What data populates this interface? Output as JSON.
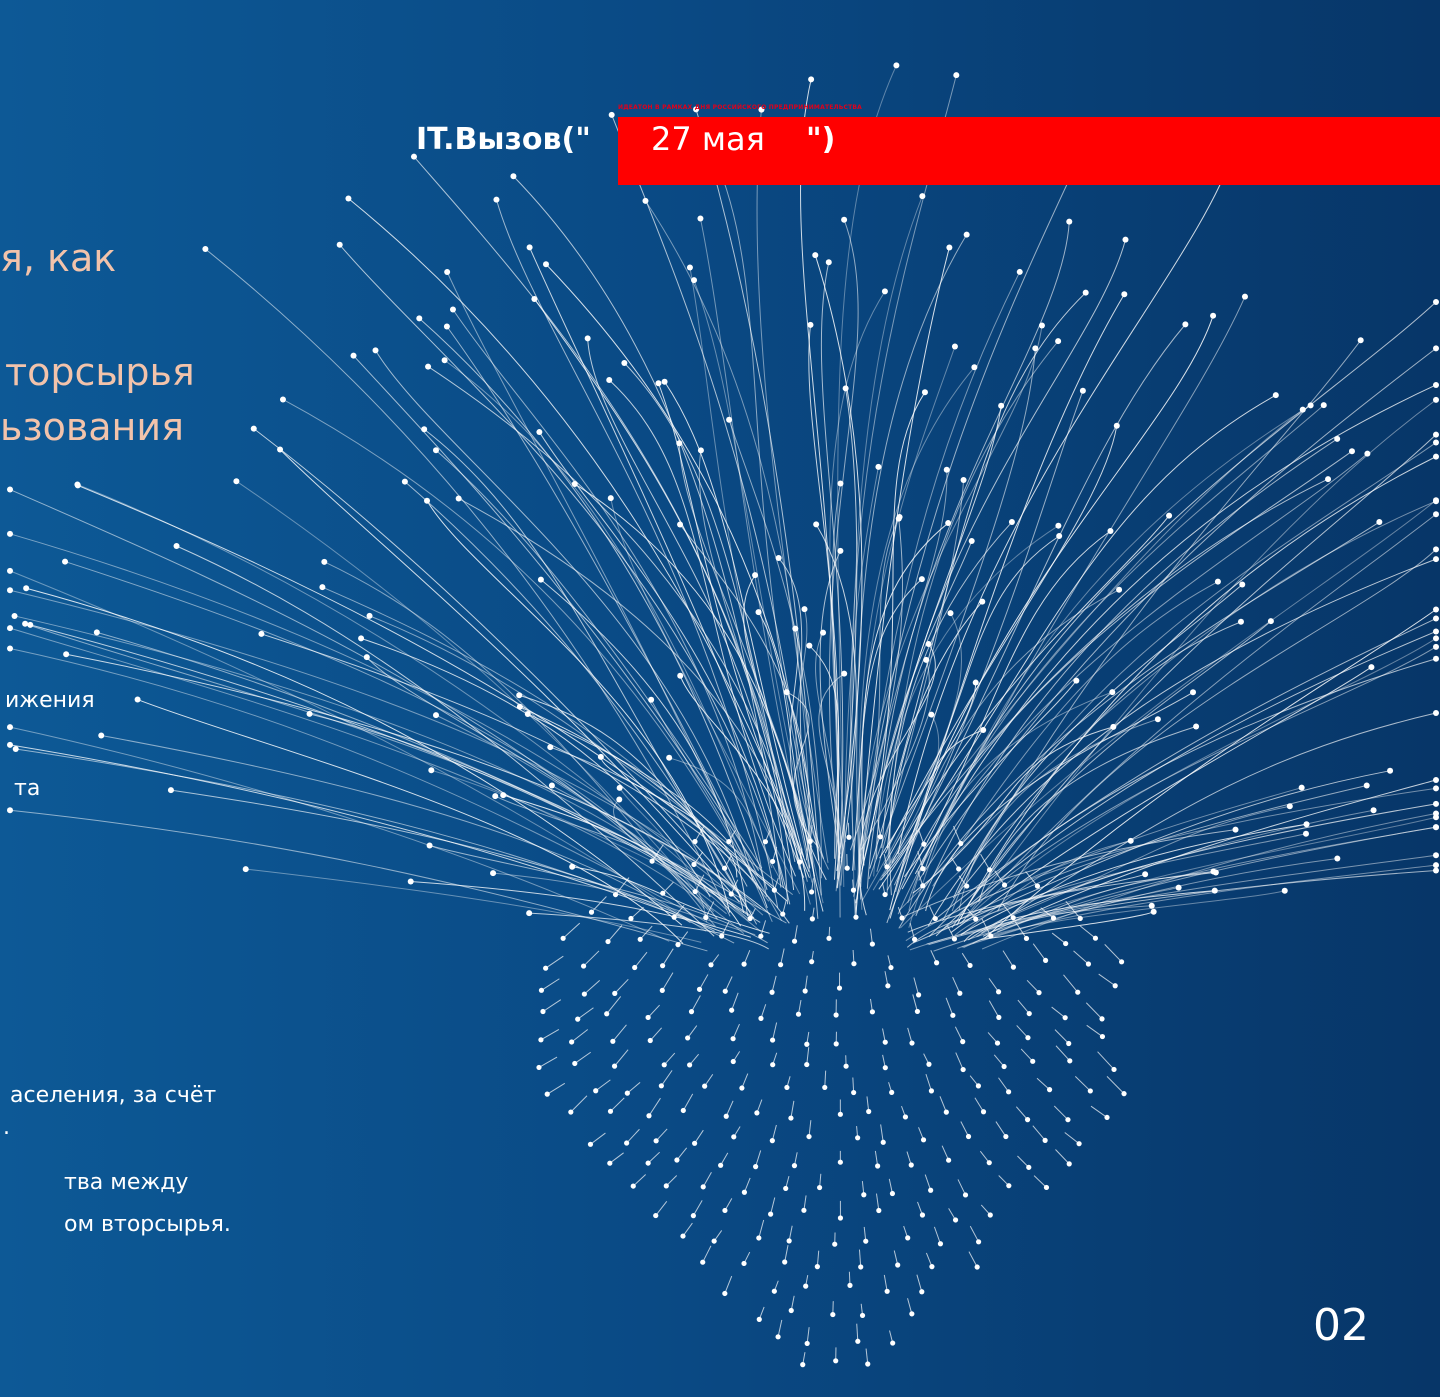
{
  "header": {
    "event": "ИДЕАТОН В РАМКАХ ДНЯ РОССИЙСКОГО ПРЕДПРИНИМАТЕЛЬСТВА",
    "logo": "IT.Вызов(\"",
    "date": "27 мая",
    "logo_close": "\")"
  },
  "content": {
    "headings": [
      "я, как",
      "торсырья",
      "ьзования"
    ],
    "body": [
      "ижения",
      "та",
      "аселения, за счёт",
      ".",
      "тва между",
      "ом вторсырья."
    ]
  },
  "page_number": "02"
}
